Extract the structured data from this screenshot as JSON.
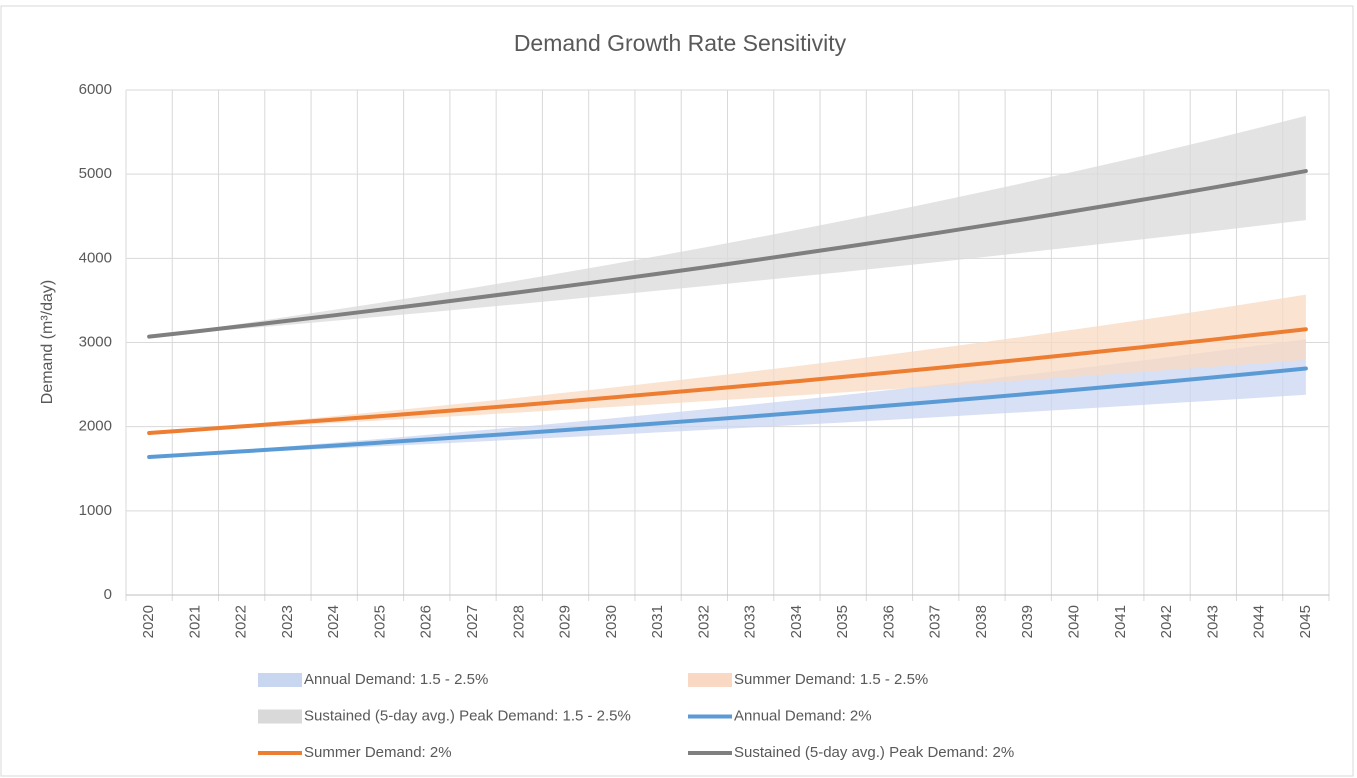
{
  "chart_data": {
    "type": "line-band",
    "title": "Demand Growth Rate Sensitivity",
    "y_label": "Demand (m³/day)",
    "categories": [
      "2020",
      "2021",
      "2022",
      "2023",
      "2024",
      "2025",
      "2026",
      "2027",
      "2028",
      "2029",
      "2030",
      "2031",
      "2032",
      "2033",
      "2034",
      "2035",
      "2036",
      "2037",
      "2038",
      "2039",
      "2040",
      "2041",
      "2042",
      "2043",
      "2044",
      "2045"
    ],
    "ylim": [
      0,
      6000
    ],
    "yticks": [
      0,
      1000,
      2000,
      3000,
      4000,
      5000,
      6000
    ],
    "grid": true,
    "bands": [
      {
        "name": "Annual Demand: 1.5 - 2.5%",
        "color": "#c9d6f0",
        "lower": [
          1640,
          1665,
          1690,
          1715,
          1741,
          1767,
          1793,
          1820,
          1847,
          1875,
          1903,
          1932,
          1961,
          1990,
          2020,
          2050,
          2081,
          2112,
          2144,
          2176,
          2209,
          2242,
          2276,
          2310,
          2344,
          2379
        ],
        "upper": [
          1640,
          1681,
          1723,
          1766,
          1810,
          1855,
          1902,
          1949,
          1998,
          2048,
          2099,
          2152,
          2206,
          2261,
          2317,
          2375,
          2435,
          2495,
          2558,
          2622,
          2687,
          2755,
          2823,
          2894,
          2966,
          3040
        ]
      },
      {
        "name": "Summer Demand: 1.5 - 2.5%",
        "color": "#f9d9c3",
        "lower": [
          1925,
          1954,
          1983,
          2013,
          2043,
          2074,
          2105,
          2136,
          2169,
          2201,
          2234,
          2267,
          2302,
          2336,
          2371,
          2407,
          2443,
          2479,
          2517,
          2554,
          2593,
          2632,
          2671,
          2711,
          2752,
          2793
        ],
        "upper": [
          1925,
          1973,
          2022,
          2073,
          2125,
          2178,
          2232,
          2288,
          2345,
          2404,
          2464,
          2526,
          2589,
          2654,
          2720,
          2788,
          2858,
          2929,
          3002,
          3077,
          3154,
          3233,
          3314,
          3397,
          3482,
          3569
        ]
      },
      {
        "name": "Sustained (5-day avg.) Peak Demand: 1.5 - 2.5%",
        "color": "#d9d9d9",
        "lower": [
          3070,
          3116,
          3163,
          3210,
          3258,
          3307,
          3357,
          3407,
          3458,
          3510,
          3563,
          3616,
          3670,
          3726,
          3782,
          3838,
          3896,
          3954,
          4013,
          4074,
          4135,
          4197,
          4260,
          4324,
          4389,
          4454
        ],
        "upper": [
          3070,
          3147,
          3225,
          3306,
          3389,
          3473,
          3560,
          3649,
          3740,
          3834,
          3930,
          4028,
          4129,
          4232,
          4338,
          4446,
          4557,
          4671,
          4788,
          4908,
          5031,
          5156,
          5285,
          5417,
          5553,
          5692
        ]
      }
    ],
    "series": [
      {
        "name": "Annual Demand: 2%",
        "color": "#5b9bd5",
        "values": [
          1640,
          1673,
          1706,
          1740,
          1775,
          1811,
          1847,
          1884,
          1922,
          1960,
          1999,
          2039,
          2080,
          2121,
          2164,
          2207,
          2251,
          2296,
          2342,
          2389,
          2437,
          2486,
          2535,
          2586,
          2638,
          2691
        ]
      },
      {
        "name": "Summer Demand: 2%",
        "color": "#ed7d31",
        "values": [
          1925,
          1964,
          2003,
          2043,
          2084,
          2125,
          2168,
          2211,
          2255,
          2301,
          2347,
          2394,
          2441,
          2490,
          2540,
          2591,
          2643,
          2695,
          2749,
          2804,
          2860,
          2918,
          2976,
          3035,
          3096,
          3158
        ]
      },
      {
        "name": "Sustained (5-day avg.) Peak Demand: 2%",
        "color": "#7f7f7f",
        "values": [
          3070,
          3131,
          3194,
          3258,
          3323,
          3390,
          3457,
          3527,
          3597,
          3669,
          3742,
          3817,
          3893,
          3971,
          4051,
          4132,
          4214,
          4299,
          4385,
          4472,
          4562,
          4653,
          4746,
          4841,
          4938,
          5037
        ]
      }
    ]
  }
}
